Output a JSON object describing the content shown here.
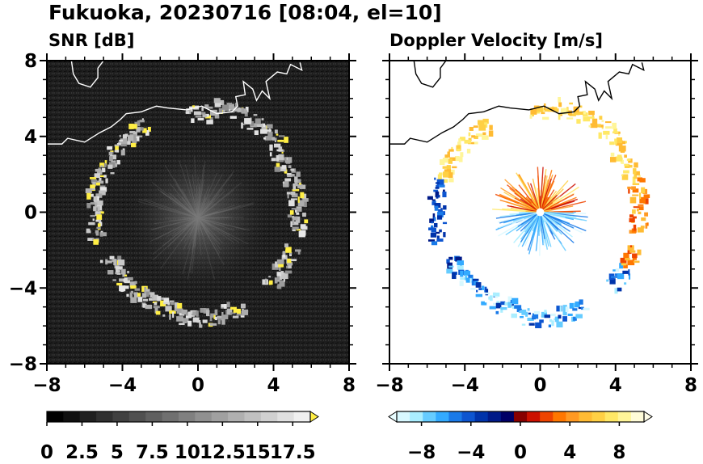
{
  "figure": {
    "title": "Fukuoka, 20230716 [08:04, el=10]"
  },
  "chart_data": [
    {
      "type": "heatmap",
      "title": "SNR [dB]",
      "xlim": [
        -8,
        8
      ],
      "ylim": [
        -8,
        8
      ],
      "x_ticks": [
        "−8",
        "−4",
        "0",
        "4",
        "8"
      ],
      "y_ticks": [
        "8",
        "4",
        "0",
        "−4",
        "−8"
      ],
      "colorbar": {
        "range": [
          0,
          18.75
        ],
        "extend": "max",
        "tick_labels": [
          "0",
          "2.5",
          "5",
          "7.5",
          "10",
          "12.5",
          "15",
          "17.5"
        ],
        "tick_values": [
          0,
          2.5,
          5,
          7.5,
          10,
          12.5,
          15,
          17.5
        ],
        "colors_low_to_high": [
          "#000000",
          "#101010",
          "#202020",
          "#303030",
          "#404040",
          "#505050",
          "#606060",
          "#707070",
          "#808080",
          "#909090",
          "#a0a0a0",
          "#b0b0b0",
          "#c0c0c0",
          "#d0d0d0",
          "#e0e0e0",
          "#f0f0f0"
        ],
        "extend_color": "#ffee44"
      },
      "background_color": "#222222",
      "echo_ring_radius": 5.4,
      "coastline_color": "#ffffff"
    },
    {
      "type": "heatmap",
      "title": "Doppler Velocity [m/s]",
      "xlim": [
        -8,
        8
      ],
      "ylim": [
        -8,
        8
      ],
      "x_ticks": [
        "−8",
        "−4",
        "0",
        "4",
        "8"
      ],
      "y_ticks": [
        "8",
        "4",
        "0",
        "−4",
        "−8"
      ],
      "colorbar": {
        "range": [
          -10,
          10
        ],
        "extend": "both",
        "tick_labels": [
          "−8",
          "−4",
          "0",
          "4",
          "8"
        ],
        "tick_values": [
          -8,
          -4,
          0,
          4,
          8
        ],
        "colors_low_to_high": [
          "#d8f8ff",
          "#aaeeff",
          "#66ccff",
          "#33aaff",
          "#1a7ae8",
          "#0d55d0",
          "#0033aa",
          "#001a88",
          "#000066",
          "#880000",
          "#cc1100",
          "#ee4400",
          "#ff7700",
          "#ff9922",
          "#ffbb33",
          "#ffd044",
          "#ffe866",
          "#fff599",
          "#fffcd8"
        ],
        "extend_low_color": "#e8fcff",
        "extend_high_color": "#fffde8"
      },
      "background_color": "#ffffff",
      "echo_ring_radius": 5.4,
      "coastline_color": "#000000"
    }
  ]
}
